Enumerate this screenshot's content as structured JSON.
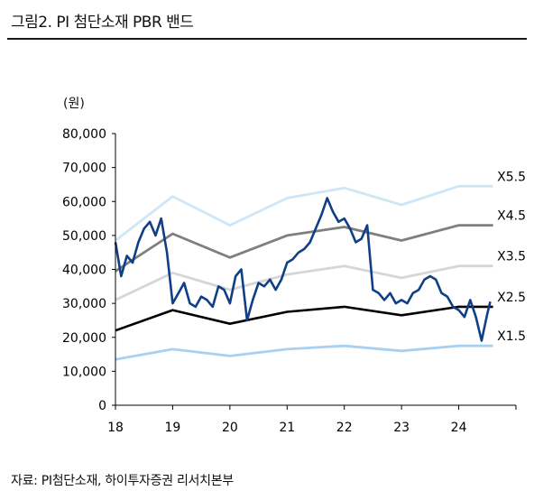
{
  "figure": {
    "title": "그림2.  PI 첨단소재  PBR 밴드",
    "source": "자료: PI첨단소재, 하이투자증권 리서치본부"
  },
  "chart_data": {
    "type": "line",
    "unit_label": "(원)",
    "xlabel": "",
    "ylabel": "",
    "ylim": [
      0,
      80000
    ],
    "xlim": [
      2018,
      2025
    ],
    "y_ticks": [
      "0",
      "10,000",
      "20,000",
      "30,000",
      "40,000",
      "50,000",
      "60,000",
      "70,000",
      "80,000"
    ],
    "y_tick_values": [
      0,
      10000,
      20000,
      30000,
      40000,
      50000,
      60000,
      70000,
      80000
    ],
    "x_ticks": [
      "18",
      "19",
      "20",
      "21",
      "22",
      "23",
      "24"
    ],
    "x_tick_values": [
      2018,
      2019,
      2020,
      2021,
      2022,
      2023,
      2024
    ],
    "grid": false,
    "legend": "none",
    "colors": {
      "price": "#0f3f86",
      "X1.5": "#a9d0f0",
      "X2.5": "#000000",
      "X3.5": "#d6d6d6",
      "X4.5": "#7f7f7f",
      "X5.5": "#cfe6f6"
    },
    "band_x": [
      2018.0,
      2019.0,
      2020.0,
      2021.0,
      2022.0,
      2023.0,
      2024.0,
      2024.6
    ],
    "series": [
      {
        "name": "X5.5",
        "values": [
          48500,
          61500,
          53000,
          61000,
          64000,
          59000,
          64500,
          64500
        ]
      },
      {
        "name": "X4.5",
        "values": [
          39500,
          50500,
          43500,
          50000,
          52500,
          48500,
          53000,
          53000
        ]
      },
      {
        "name": "X3.5",
        "values": [
          31000,
          39000,
          34000,
          38500,
          41000,
          37500,
          41000,
          41000
        ]
      },
      {
        "name": "X2.5",
        "values": [
          22000,
          28000,
          24000,
          27500,
          29000,
          26500,
          29000,
          29000
        ]
      },
      {
        "name": "X1.5",
        "values": [
          13500,
          16500,
          14500,
          16500,
          17500,
          16000,
          17500,
          17500
        ]
      }
    ],
    "price": {
      "x": [
        2018.0,
        2018.1,
        2018.2,
        2018.3,
        2018.4,
        2018.5,
        2018.6,
        2018.7,
        2018.8,
        2018.9,
        2019.0,
        2019.1,
        2019.2,
        2019.3,
        2019.4,
        2019.5,
        2019.6,
        2019.7,
        2019.8,
        2019.9,
        2020.0,
        2020.1,
        2020.2,
        2020.3,
        2020.4,
        2020.5,
        2020.6,
        2020.7,
        2020.8,
        2020.9,
        2021.0,
        2021.1,
        2021.2,
        2021.3,
        2021.4,
        2021.5,
        2021.6,
        2021.7,
        2021.8,
        2021.9,
        2022.0,
        2022.1,
        2022.2,
        2022.3,
        2022.4,
        2022.5,
        2022.6,
        2022.7,
        2022.8,
        2022.9,
        2023.0,
        2023.1,
        2023.2,
        2023.3,
        2023.4,
        2023.5,
        2023.6,
        2023.7,
        2023.8,
        2023.9,
        2024.0,
        2024.1,
        2024.2,
        2024.3,
        2024.4,
        2024.5,
        2024.55
      ],
      "y": [
        48000,
        38000,
        44000,
        42000,
        48000,
        52000,
        54000,
        50000,
        55000,
        45000,
        30000,
        33000,
        36000,
        30000,
        29000,
        32000,
        31000,
        29000,
        35000,
        34000,
        30000,
        38000,
        40000,
        25000,
        31000,
        36000,
        35000,
        37000,
        34000,
        37000,
        42000,
        43000,
        45000,
        46000,
        48000,
        52000,
        56000,
        61000,
        57000,
        54000,
        55000,
        52000,
        48000,
        49000,
        53000,
        34000,
        33000,
        31000,
        33000,
        30000,
        31000,
        30000,
        33000,
        34000,
        37000,
        38000,
        37000,
        33000,
        32000,
        29000,
        28000,
        26000,
        31000,
        26000,
        19000,
        27000,
        30500
      ]
    }
  }
}
